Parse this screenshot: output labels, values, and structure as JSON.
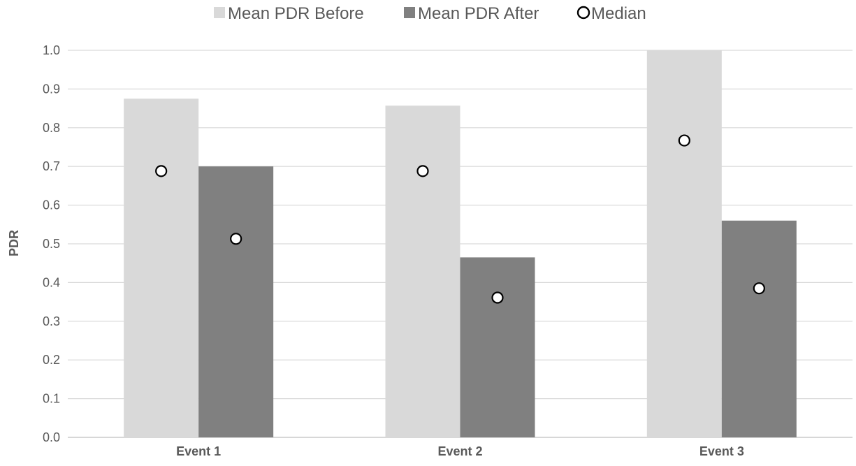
{
  "chart_data": {
    "type": "bar",
    "title": "",
    "xlabel": "",
    "ylabel": "PDR",
    "categories": [
      "Event 1",
      "Event 2",
      "Event 3"
    ],
    "ylim": [
      0,
      1.0
    ],
    "yticks": [
      "0.0",
      "0.1",
      "0.2",
      "0.3",
      "0.4",
      "0.5",
      "0.6",
      "0.7",
      "0.8",
      "0.9",
      "1.0"
    ],
    "grid": true,
    "legend_position": "top",
    "series": [
      {
        "name": "Mean PDR Before",
        "kind": "bar",
        "color": "#d9d9d9",
        "values": [
          0.875,
          0.857,
          1.0
        ]
      },
      {
        "name": "Mean PDR After",
        "kind": "bar",
        "color": "#808080",
        "values": [
          0.7,
          0.465,
          0.56
        ]
      },
      {
        "name": "Median",
        "kind": "marker",
        "color": "#000000",
        "values": [
          [
            0.688,
            0.513
          ],
          [
            0.688,
            0.361
          ],
          [
            0.767,
            0.385
          ]
        ]
      }
    ]
  }
}
